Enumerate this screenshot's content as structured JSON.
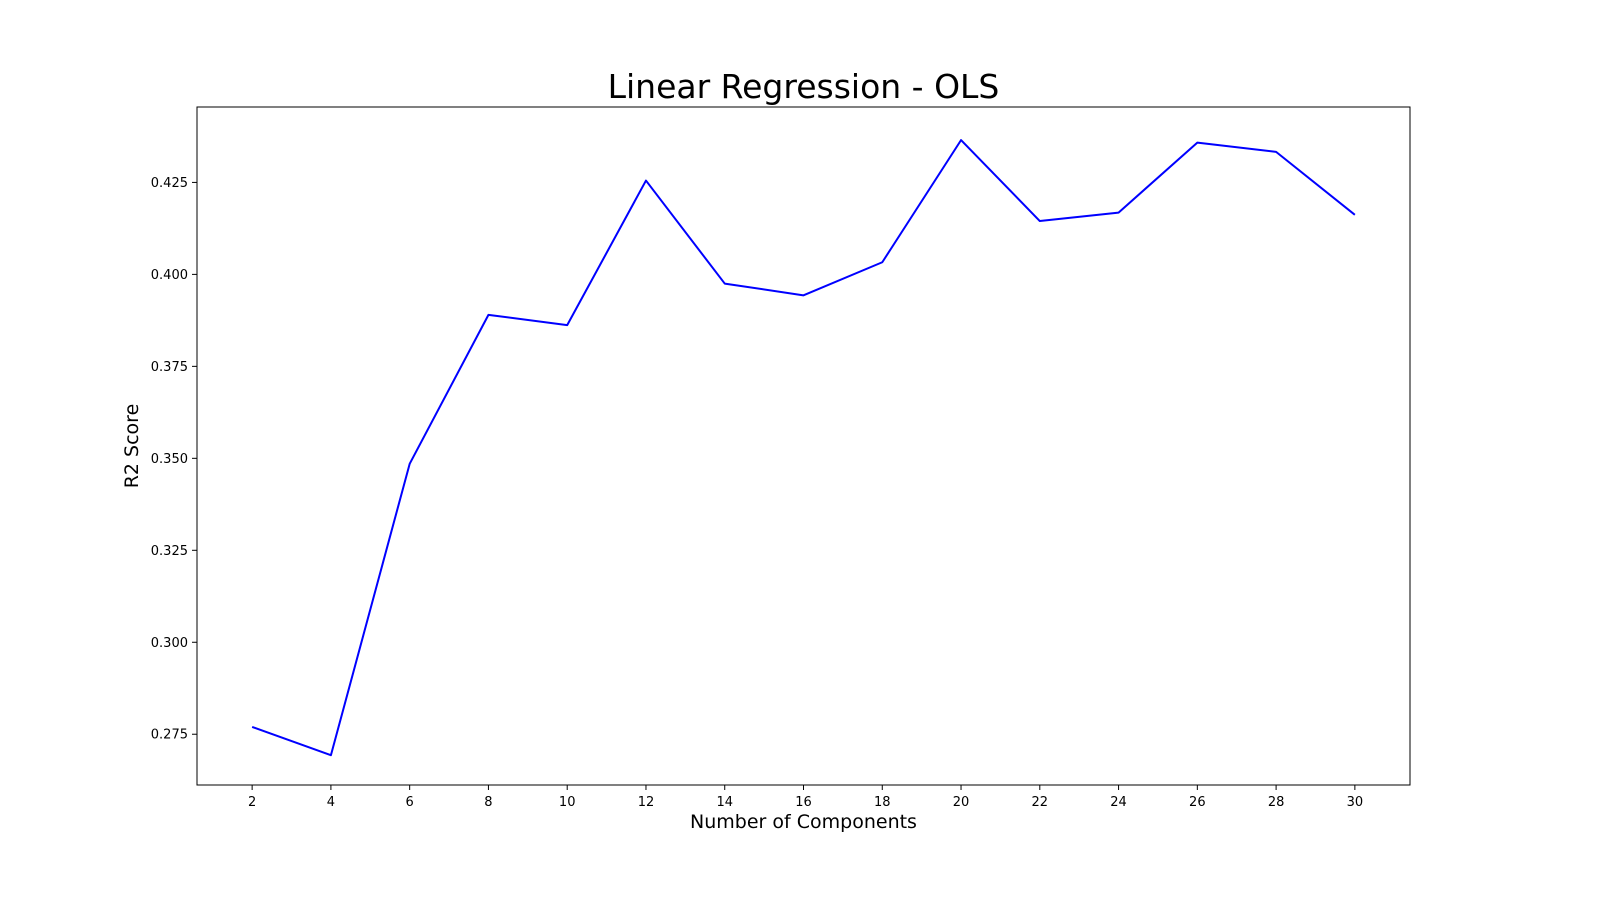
{
  "chart_data": {
    "type": "line",
    "title": "Linear Regression - OLS",
    "xlabel": "Number of Components",
    "ylabel": "R2 Score",
    "x": [
      2,
      4,
      6,
      8,
      10,
      12,
      14,
      16,
      18,
      20,
      22,
      24,
      26,
      28,
      30
    ],
    "series": [
      {
        "values": [
          0.277,
          0.2693,
          0.3485,
          0.389,
          0.3862,
          0.4255,
          0.3975,
          0.3943,
          0.4033,
          0.4365,
          0.4145,
          0.4168,
          0.4358,
          0.4333,
          0.4162
        ],
        "color": "#0000ff"
      }
    ],
    "xticks": [
      "2",
      "4",
      "6",
      "8",
      "10",
      "12",
      "14",
      "16",
      "18",
      "20",
      "22",
      "24",
      "26",
      "28",
      "30"
    ],
    "yticks": [
      "0.275",
      "0.300",
      "0.325",
      "0.350",
      "0.375",
      "0.400",
      "0.425"
    ],
    "xlim": [
      0.6,
      31.4
    ],
    "ylim": [
      0.2612,
      0.4455
    ],
    "grid": false
  }
}
